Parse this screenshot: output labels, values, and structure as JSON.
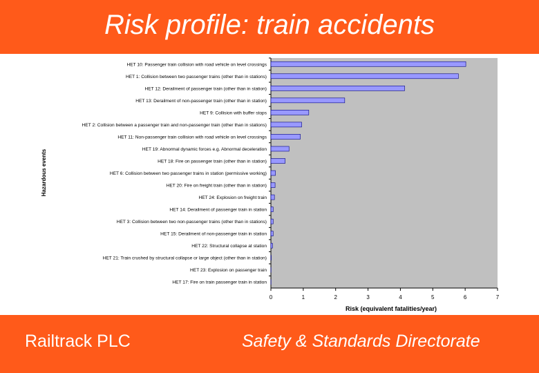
{
  "header": {
    "title": "Risk profile: train accidents"
  },
  "footer": {
    "left": "Railtrack PLC",
    "right": "Safety & Standards Directorate"
  },
  "colors": {
    "banner": "#ff5a1a",
    "plot_bg": "#c0c0c0",
    "bar": "#9999ff",
    "bar_edge": "#000080"
  },
  "chart_data": {
    "type": "bar",
    "orientation": "horizontal",
    "title": "",
    "xlabel": "Risk (equivalent fatalities/year)",
    "ylabel": "Hazardous events",
    "xlim": [
      0,
      7
    ],
    "xticks": [
      0,
      1,
      2,
      3,
      4,
      5,
      6,
      7
    ],
    "grid": false,
    "legend": "none",
    "categories": [
      "HET 10: Passenger train collision with road vehicle on level crossings",
      "HET 1: Collision between two passenger trains (other than in stations)",
      "HET 12: Derailment of passenger train (other than in station)",
      "HET 13: Derailment of non-passenger train (other than in station)",
      "HET 9: Collision with buffer stops",
      "HET 2: Collision between a passenger train and non-passenger train (other than in stations)",
      "HET 11: Non-passenger train collision with road vehicle on level crossings",
      "HET 19: Abnormal dynamic forces e.g. Abnormal deceleration",
      "HET 18: Fire on passenger train (other than in station)",
      "HET 6: Collision between two passenger trains in station (permissive working)",
      "HET 20: Fire on freight train (other than in station)",
      "HET 24: Explosion on freight train",
      "HET 14: Derailment of passenger train in station",
      "HET 3: Collision between two non-passenger trains (other than in stations)",
      "HET 15: Derailment of non-passenger train in station",
      "HET 22: Structural collapse at station",
      "HET 21: Train crushed by structural collapse or large object (other than in station)",
      "HET 23: Explosion on passenger train",
      "HET 17: Fire on train passenger train in station"
    ],
    "values": [
      6.02,
      5.79,
      4.13,
      2.28,
      1.17,
      0.95,
      0.91,
      0.56,
      0.44,
      0.14,
      0.13,
      0.11,
      0.07,
      0.07,
      0.07,
      0.05,
      0.01,
      0.005,
      0.005
    ]
  }
}
